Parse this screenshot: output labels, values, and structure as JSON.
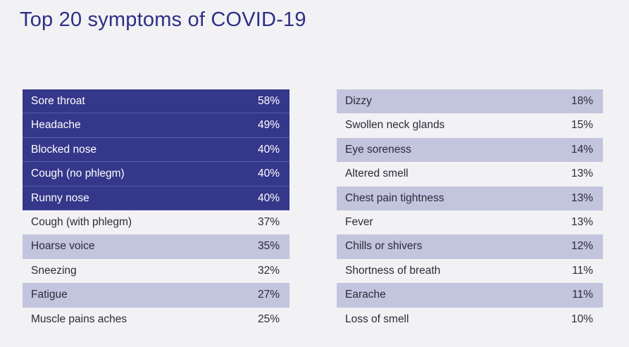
{
  "title": "Top 20 symptoms of COVID-19",
  "colors": {
    "title": "#2e2f86",
    "top_row_bg": "#34378a",
    "shaded_row_bg": "#c3c4dd",
    "background": "#f2f2f4"
  },
  "chart_data": {
    "type": "table",
    "title": "Top 20 symptoms of COVID-19",
    "columns": [
      {
        "rows": [
          {
            "symptom": "Sore throat",
            "value": "58%",
            "style": "top5"
          },
          {
            "symptom": "Headache",
            "value": "49%",
            "style": "top5"
          },
          {
            "symptom": "Blocked nose",
            "value": "40%",
            "style": "top5"
          },
          {
            "symptom": "Cough (no phlegm)",
            "value": "40%",
            "style": "top5"
          },
          {
            "symptom": "Runny nose",
            "value": "40%",
            "style": "top5"
          },
          {
            "symptom": "Cough (with phlegm)",
            "value": "37%",
            "style": "plain"
          },
          {
            "symptom": "Hoarse voice",
            "value": "35%",
            "style": "shaded"
          },
          {
            "symptom": "Sneezing",
            "value": "32%",
            "style": "plain"
          },
          {
            "symptom": "Fatigue",
            "value": "27%",
            "style": "shaded"
          },
          {
            "symptom": "Muscle pains aches",
            "value": "25%",
            "style": "plain"
          }
        ]
      },
      {
        "rows": [
          {
            "symptom": "Dizzy",
            "value": "18%",
            "style": "shaded"
          },
          {
            "symptom": "Swollen neck glands",
            "value": "15%",
            "style": "plain"
          },
          {
            "symptom": "Eye soreness",
            "value": "14%",
            "style": "shaded"
          },
          {
            "symptom": "Altered smell",
            "value": "13%",
            "style": "plain"
          },
          {
            "symptom": "Chest pain tightness",
            "value": "13%",
            "style": "shaded"
          },
          {
            "symptom": "Fever",
            "value": "13%",
            "style": "plain"
          },
          {
            "symptom": "Chills or shivers",
            "value": "12%",
            "style": "shaded"
          },
          {
            "symptom": "Shortness of breath",
            "value": "11%",
            "style": "plain"
          },
          {
            "symptom": "Earache",
            "value": "11%",
            "style": "shaded"
          },
          {
            "symptom": "Loss of smell",
            "value": "10%",
            "style": "plain"
          }
        ]
      }
    ]
  }
}
